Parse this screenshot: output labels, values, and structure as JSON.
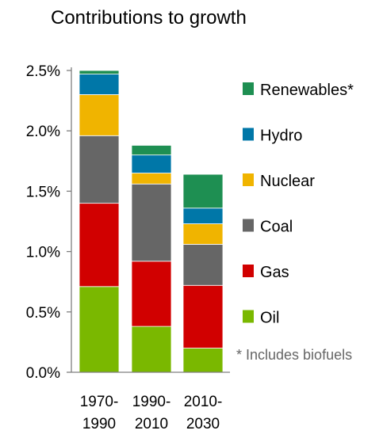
{
  "chart_data": {
    "type": "bar",
    "stacked": true,
    "title": "Contributions to growth",
    "xlabel": "",
    "ylabel": "",
    "ylim": [
      0,
      2.5
    ],
    "y_ticks": [
      "0.0%",
      "0.5%",
      "1.0%",
      "1.5%",
      "2.0%",
      "2.5%"
    ],
    "categories": [
      [
        "1970-",
        "1990"
      ],
      [
        "1990-",
        "2010"
      ],
      [
        "2010-",
        "2030"
      ]
    ],
    "series": [
      {
        "name": "Oil",
        "color": "#7ab800",
        "values": [
          0.71,
          0.38,
          0.2
        ]
      },
      {
        "name": "Gas",
        "color": "#d10000",
        "values": [
          0.69,
          0.54,
          0.52
        ]
      },
      {
        "name": "Coal",
        "color": "#666666",
        "values": [
          0.56,
          0.64,
          0.34
        ]
      },
      {
        "name": "Nuclear",
        "color": "#f0b400",
        "values": [
          0.34,
          0.09,
          0.17
        ]
      },
      {
        "name": "Hydro",
        "color": "#0077a8",
        "values": [
          0.17,
          0.15,
          0.13
        ]
      },
      {
        "name": "Renewables*",
        "color": "#1e8f52",
        "values": [
          0.03,
          0.08,
          0.28
        ]
      }
    ],
    "legend": {
      "position": "right",
      "order": [
        "Renewables*",
        "Hydro",
        "Nuclear",
        "Coal",
        "Gas",
        "Oil"
      ]
    },
    "footnote": "* Includes biofuels",
    "grid": false
  }
}
